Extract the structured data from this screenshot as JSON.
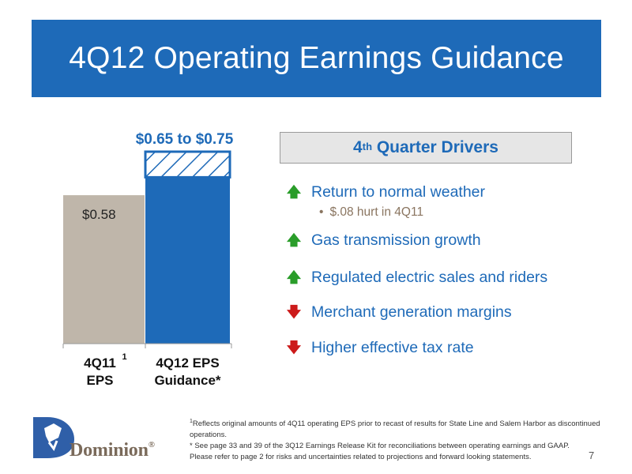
{
  "title": "4Q12 Operating Earnings Guidance",
  "chart_data": {
    "type": "bar",
    "categories": [
      {
        "line1": "4Q11",
        "line2": "EPS",
        "superscript": "1"
      },
      {
        "line1": "4Q12 EPS",
        "line2": "Guidance*"
      }
    ],
    "bars": [
      {
        "value": 0.58,
        "label": "$0.58",
        "color": "#bfb6aa"
      },
      {
        "range": [
          0.65,
          0.75
        ],
        "label": "$0.65 to $0.75",
        "color": "#1e6ab8",
        "range_pattern": "hatched"
      }
    ],
    "ylim": [
      0,
      0.75
    ],
    "grid": false
  },
  "drivers": {
    "heading_main": "4",
    "heading_sup": "th",
    "heading_rest": " Quarter Drivers",
    "items": [
      {
        "direction": "up",
        "arrow": "🡅",
        "label": "Return to normal weather",
        "sub": "$.08 hurt in 4Q11"
      },
      {
        "direction": "up",
        "arrow": "🡅",
        "label": "Gas transmission growth"
      },
      {
        "direction": "up",
        "arrow": "🡅",
        "label": "Regulated electric sales and riders"
      },
      {
        "direction": "down",
        "arrow": "🡇",
        "label": "Merchant generation margins"
      },
      {
        "direction": "down",
        "arrow": "🡇",
        "label": "Higher effective tax rate"
      }
    ],
    "sub_bullet_marker": "•"
  },
  "logo": {
    "name": "Dominion",
    "registered": "®"
  },
  "footnotes": {
    "note1_marker": "1",
    "note1": "Reflects original amounts of 4Q11 operating EPS prior to recast of results for State Line and Salem Harbor as discontinued operations.",
    "note2": "* See page 33 and 39 of the 3Q12 Earnings Release Kit for reconciliations between operating earnings and GAAP.",
    "note3": "Please refer to page 2 for risks and uncertainties related to projections and forward looking statements."
  },
  "page_number": "7"
}
